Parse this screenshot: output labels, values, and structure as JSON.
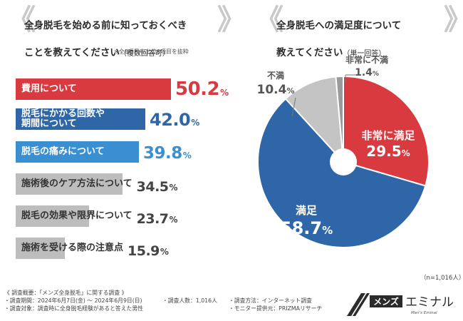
{
  "left": {
    "title_line1": "全身脱毛を始める前に知っておくべき",
    "title_line2": "ことを教えてください",
    "title_sub": "（複数回答可）",
    "note": "※全8項目中上位6項目を抜粋"
  },
  "right": {
    "title_line1": "全身脱毛への満足度について",
    "title_line2": "教えてください",
    "title_sub": "（単一回答）",
    "sample": "（n=1,016人）"
  },
  "chart_data": [
    {
      "type": "bar",
      "categories": [
        "費用について",
        "脱毛にかかる回数や\n期間について",
        "脱毛の痛みについて",
        "施術後のケア方法について",
        "脱毛の効果や限界について",
        "施術を受ける際の注意点"
      ],
      "values": [
        50.2,
        42.0,
        39.8,
        34.5,
        23.7,
        15.9
      ],
      "value_labels": [
        "50.2",
        "42.0",
        "39.8",
        "34.5",
        "23.7",
        "15.9"
      ],
      "unit": "%",
      "colors": [
        "#d93a3f",
        "#2e66a8",
        "#3a8fd1",
        "#bdbdbd",
        "#bdbdbd",
        "#bdbdbd"
      ],
      "value_colors": [
        "#d93a3f",
        "#2e66a8",
        "#3a8fd1",
        "#444444",
        "#444444",
        "#444444"
      ]
    },
    {
      "type": "pie",
      "categories": [
        "非常に満足",
        "満足",
        "不満",
        "非常に不満"
      ],
      "values": [
        29.5,
        58.7,
        10.4,
        1.4
      ],
      "value_labels": [
        "29.5",
        "58.7",
        "10.4",
        "1.4"
      ],
      "unit": "%",
      "colors": [
        "#d93a3f",
        "#2e66a8",
        "#c4c4c4",
        "#9a9a9a"
      ]
    }
  ],
  "survey": {
    "overview": "《 調査概要：「メンズ全身脱毛」に関する調査 》",
    "period": "・調査期間：2024年6月7日(金) ～ 2024年6月9日(日)",
    "count": "・調査人数：1,016人",
    "method": "・調査方法：インターネット調査",
    "target": "・調査対象：調査時に全身脱毛経験があると答えた男性",
    "provider": "・モニター提供元：PRIZMAリサーチ"
  },
  "logo": {
    "brand_left": "メンズ",
    "brand_right": "エミナル",
    "tagline": "Men's Eminal",
    "colors": {
      "dark": "#2b2b2b",
      "light": "#ffffff"
    }
  }
}
